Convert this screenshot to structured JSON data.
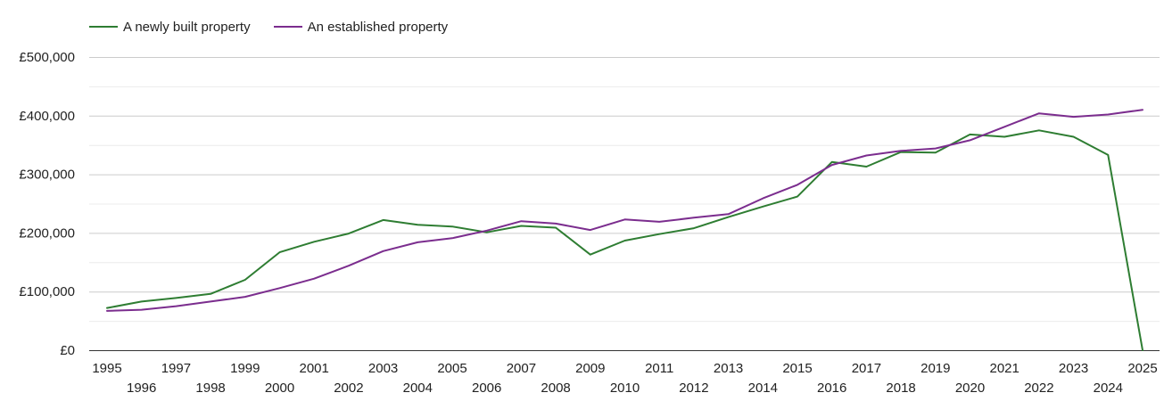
{
  "chart_data": {
    "type": "line",
    "title": "",
    "xlabel": "",
    "ylabel": "",
    "ylim": [
      0,
      500000
    ],
    "y_ticks": [
      0,
      100000,
      200000,
      300000,
      400000,
      500000
    ],
    "y_tick_labels": [
      "£0",
      "£100,000",
      "£200,000",
      "£300,000",
      "£400,000",
      "£500,000"
    ],
    "x": [
      1995,
      1996,
      1997,
      1998,
      1999,
      2000,
      2001,
      2002,
      2003,
      2004,
      2005,
      2006,
      2007,
      2008,
      2009,
      2010,
      2011,
      2012,
      2013,
      2014,
      2015,
      2016,
      2017,
      2018,
      2019,
      2020,
      2021,
      2022,
      2023,
      2024,
      2025
    ],
    "x_tick_labels": [
      "1995",
      "1996",
      "1997",
      "1998",
      "1999",
      "2000",
      "2001",
      "2002",
      "2003",
      "2004",
      "2005",
      "2006",
      "2007",
      "2008",
      "2009",
      "2010",
      "2011",
      "2012",
      "2013",
      "2014",
      "2015",
      "2016",
      "2017",
      "2018",
      "2019",
      "2020",
      "2021",
      "2022",
      "2023",
      "2024",
      "2025"
    ],
    "legend_position": "top-left",
    "series": [
      {
        "name": "A newly built property",
        "color": "#2e7d32",
        "values": [
          72000,
          83000,
          89000,
          96000,
          120000,
          167000,
          185000,
          199000,
          222000,
          214000,
          211000,
          201000,
          212000,
          209000,
          163000,
          187000,
          198000,
          208000,
          227000,
          245000,
          262000,
          321000,
          313000,
          338000,
          337000,
          368000,
          364000,
          375000,
          364000,
          333000,
          0
        ]
      },
      {
        "name": "An established property",
        "color": "#7b2d8e",
        "values": [
          67000,
          69000,
          75000,
          83000,
          91000,
          106000,
          122000,
          144000,
          169000,
          184000,
          191000,
          204000,
          220000,
          216000,
          205000,
          223000,
          219000,
          226000,
          232000,
          259000,
          282000,
          316000,
          332000,
          340000,
          344000,
          358000,
          381000,
          404000,
          398000,
          402000,
          410000
        ]
      }
    ]
  }
}
